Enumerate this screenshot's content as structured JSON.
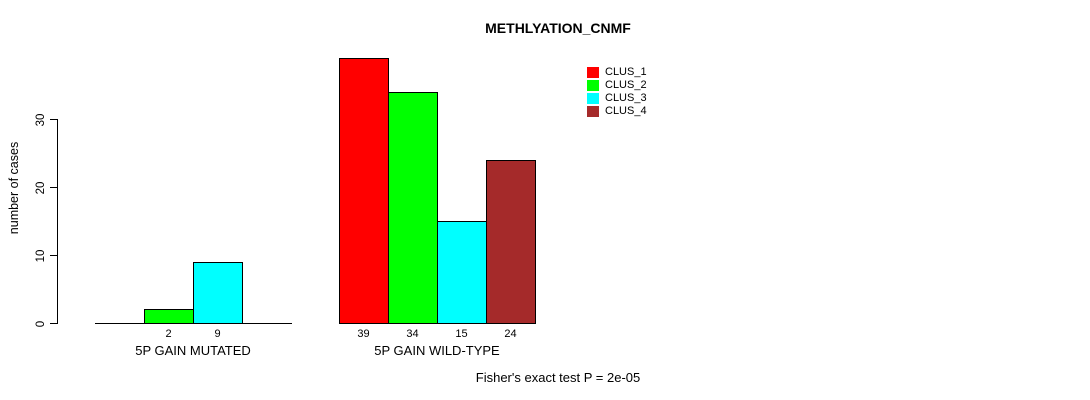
{
  "chart_data": {
    "type": "bar",
    "title": "METHLYATION_CNMF",
    "ylabel": "number of cases",
    "yticks": [
      0,
      10,
      20,
      30
    ],
    "ylim": [
      0,
      39
    ],
    "grid": false,
    "legend_position": "top-right",
    "categories": [
      "CLUS_1",
      "CLUS_2",
      "CLUS_3",
      "CLUS_4"
    ],
    "series": [
      {
        "name": "5P GAIN MUTATED",
        "values": [
          0,
          2,
          9,
          0
        ]
      },
      {
        "name": "5P GAIN WILD-TYPE",
        "values": [
          39,
          34,
          15,
          24
        ]
      }
    ],
    "groups": [
      {
        "label": "5P GAIN MUTATED",
        "values": [
          0,
          2,
          9,
          0
        ],
        "value_labels": [
          "2",
          "9"
        ]
      },
      {
        "label": "5P GAIN WILD-TYPE",
        "values": [
          39,
          34,
          15,
          24
        ],
        "value_labels": [
          "39",
          "34",
          "15",
          "24"
        ]
      }
    ],
    "legend": [
      {
        "label": "CLUS_1",
        "color": "#FF0000"
      },
      {
        "label": "CLUS_2",
        "color": "#00FF00"
      },
      {
        "label": "CLUS_3",
        "color": "#00FFFF"
      },
      {
        "label": "CLUS_4",
        "color": "#A52A2A"
      }
    ],
    "footnote": "Fisher's exact test P = 2e-05"
  }
}
